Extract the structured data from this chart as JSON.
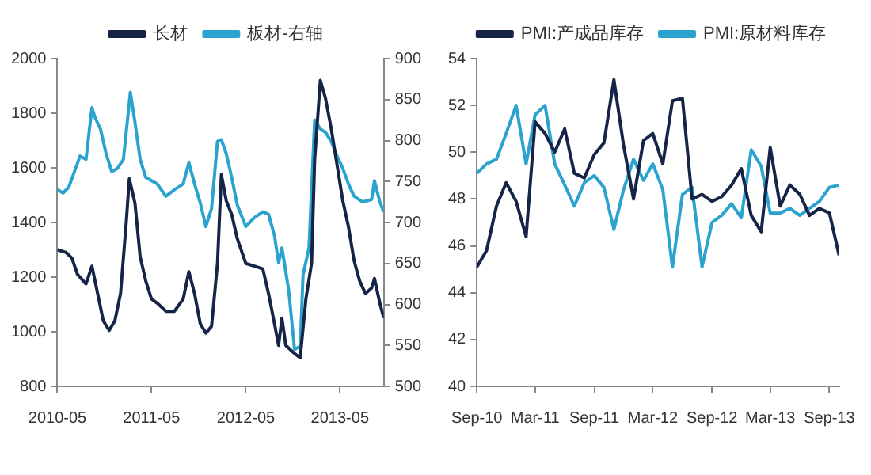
{
  "chart_data": [
    {
      "type": "line",
      "legend": "top",
      "grid": false,
      "marker": "none",
      "line_style": "solid",
      "xlim": [
        "2010-05-01",
        "2013-10-18"
      ],
      "xticks": [
        "2010-05",
        "2011-05",
        "2012-05",
        "2013-05"
      ],
      "ylim": [
        800,
        2000
      ],
      "yticks": [
        800,
        1000,
        1200,
        1400,
        1600,
        1800,
        2000
      ],
      "y2lim": [
        500,
        900
      ],
      "y2ticks": [
        500,
        550,
        600,
        650,
        700,
        750,
        800,
        850,
        900
      ],
      "series": [
        {
          "name": "长材",
          "color": "#162447",
          "x": [
            "2010-05-01",
            "2010-06-04",
            "2010-06-26",
            "2010-07-18",
            "2010-08-20",
            "2010-09-12",
            "2010-10-04",
            "2010-10-26",
            "2010-11-18",
            "2010-12-10",
            "2011-01-01",
            "2011-01-23",
            "2011-02-04",
            "2011-02-26",
            "2011-03-18",
            "2011-04-09",
            "2011-05-01",
            "2011-05-23",
            "2011-06-26",
            "2011-07-29",
            "2011-09-01",
            "2011-09-23",
            "2011-10-15",
            "2011-11-06",
            "2011-11-28",
            "2011-12-20",
            "2012-01-12",
            "2012-01-27",
            "2012-02-15",
            "2012-03-07",
            "2012-03-29",
            "2012-05-01",
            "2012-06-03",
            "2012-07-06",
            "2012-07-28",
            "2012-08-20",
            "2012-09-05",
            "2012-09-18",
            "2012-10-03",
            "2012-11-06",
            "2012-11-28",
            "2012-12-20",
            "2013-01-11",
            "2013-01-23",
            "2013-02-14",
            "2013-03-06",
            "2013-03-28",
            "2013-04-20",
            "2013-05-12",
            "2013-06-03",
            "2013-06-25",
            "2013-07-17",
            "2013-08-08",
            "2013-09-01",
            "2013-09-12",
            "2013-10-03",
            "2013-10-18"
          ],
          "values": [
            1300,
            1290,
            1270,
            1210,
            1175,
            1240,
            1140,
            1040,
            1005,
            1040,
            1140,
            1400,
            1560,
            1470,
            1275,
            1185,
            1120,
            1105,
            1075,
            1075,
            1120,
            1220,
            1140,
            1030,
            995,
            1020,
            1250,
            1575,
            1480,
            1430,
            1340,
            1250,
            1240,
            1230,
            1140,
            1030,
            950,
            1050,
            950,
            920,
            905,
            1120,
            1250,
            1630,
            1920,
            1855,
            1745,
            1610,
            1480,
            1385,
            1260,
            1185,
            1140,
            1160,
            1195,
            1105,
            1050
          ]
        },
        {
          "name": "板材-右轴",
          "color": "#2ba3cf",
          "axis": "y2",
          "x": [
            "2010-05-01",
            "2010-05-23",
            "2010-06-14",
            "2010-07-06",
            "2010-07-28",
            "2010-08-20",
            "2010-09-12",
            "2010-09-23",
            "2010-10-15",
            "2010-11-06",
            "2010-11-28",
            "2010-12-20",
            "2011-01-12",
            "2011-02-08",
            "2011-02-26",
            "2011-03-18",
            "2011-04-09",
            "2011-05-01",
            "2011-05-23",
            "2011-06-26",
            "2011-07-29",
            "2011-09-01",
            "2011-09-23",
            "2011-10-15",
            "2011-11-06",
            "2011-11-28",
            "2011-12-20",
            "2012-01-12",
            "2012-01-27",
            "2012-02-15",
            "2012-03-07",
            "2012-03-29",
            "2012-05-01",
            "2012-06-03",
            "2012-07-06",
            "2012-07-28",
            "2012-08-20",
            "2012-09-05",
            "2012-09-18",
            "2012-10-14",
            "2012-11-06",
            "2012-11-28",
            "2012-12-09",
            "2013-01-01",
            "2013-01-23",
            "2013-02-14",
            "2013-03-06",
            "2013-03-28",
            "2013-04-20",
            "2013-05-12",
            "2013-06-03",
            "2013-06-25",
            "2013-07-28",
            "2013-09-01",
            "2013-09-12",
            "2013-10-03",
            "2013-10-18"
          ],
          "values": [
            740,
            736,
            743,
            762,
            781,
            777,
            840,
            829,
            814,
            784,
            762,
            766,
            777,
            859,
            822,
            777,
            755,
            751,
            747,
            732,
            740,
            747,
            773,
            747,
            724,
            695,
            717,
            799,
            801,
            784,
            755,
            721,
            695,
            706,
            713,
            710,
            684,
            651,
            669,
            618,
            545,
            549,
            636,
            669,
            825,
            814,
            810,
            799,
            781,
            766,
            747,
            732,
            725,
            728,
            751,
            725,
            713
          ]
        }
      ]
    },
    {
      "type": "line",
      "legend": "top",
      "grid": false,
      "marker": "none",
      "line_style": "solid",
      "xlim": [
        "2010-09",
        "2013-10"
      ],
      "xticks": [
        {
          "value": "2010-09",
          "label": "Sep-10"
        },
        {
          "value": "2011-03",
          "label": "Mar-11"
        },
        {
          "value": "2011-09",
          "label": "Sep-11"
        },
        {
          "value": "2012-03",
          "label": "Mar-12"
        },
        {
          "value": "2012-09",
          "label": "Sep-12"
        },
        {
          "value": "2013-03",
          "label": "Mar-13"
        },
        {
          "value": "2013-09",
          "label": "Sep-13"
        }
      ],
      "ylim": [
        40,
        54
      ],
      "yticks": [
        40,
        42,
        44,
        46,
        48,
        50,
        52,
        54
      ],
      "x": [
        "2010-09",
        "2010-10",
        "2010-11",
        "2010-12",
        "2011-01",
        "2011-02",
        "2011-03",
        "2011-04",
        "2011-05",
        "2011-06",
        "2011-07",
        "2011-08",
        "2011-09",
        "2011-10",
        "2011-11",
        "2011-12",
        "2012-01",
        "2012-02",
        "2012-03",
        "2012-04",
        "2012-05",
        "2012-06",
        "2012-07",
        "2012-08",
        "2012-09",
        "2012-10",
        "2012-11",
        "2012-12",
        "2013-01",
        "2013-02",
        "2013-03",
        "2013-04",
        "2013-05",
        "2013-06",
        "2013-07",
        "2013-08",
        "2013-09",
        "2013-10"
      ],
      "series": [
        {
          "name": "PMI:产成品库存",
          "color": "#162447",
          "values": [
            45.1,
            45.8,
            47.7,
            48.7,
            47.9,
            46.4,
            51.3,
            50.8,
            50.0,
            51.0,
            49.1,
            48.9,
            49.9,
            50.4,
            53.1,
            50.3,
            48.0,
            50.5,
            50.8,
            49.5,
            52.2,
            52.3,
            48.0,
            48.2,
            47.9,
            48.1,
            48.6,
            49.3,
            47.3,
            46.6,
            50.2,
            47.7,
            48.6,
            48.2,
            47.3,
            47.6,
            47.4,
            45.6
          ]
        },
        {
          "name": "PMI:原材料库存",
          "color": "#2ba3cf",
          "values": [
            49.1,
            49.5,
            49.7,
            50.8,
            52.0,
            49.5,
            51.6,
            52.0,
            49.5,
            48.6,
            47.7,
            48.7,
            49.0,
            48.5,
            46.7,
            48.4,
            49.7,
            48.8,
            49.5,
            48.4,
            45.1,
            48.2,
            48.5,
            45.1,
            47.0,
            47.3,
            47.8,
            47.2,
            50.1,
            49.4,
            47.4,
            47.4,
            47.6,
            47.3,
            47.6,
            47.9,
            48.5,
            48.6
          ]
        }
      ]
    }
  ]
}
